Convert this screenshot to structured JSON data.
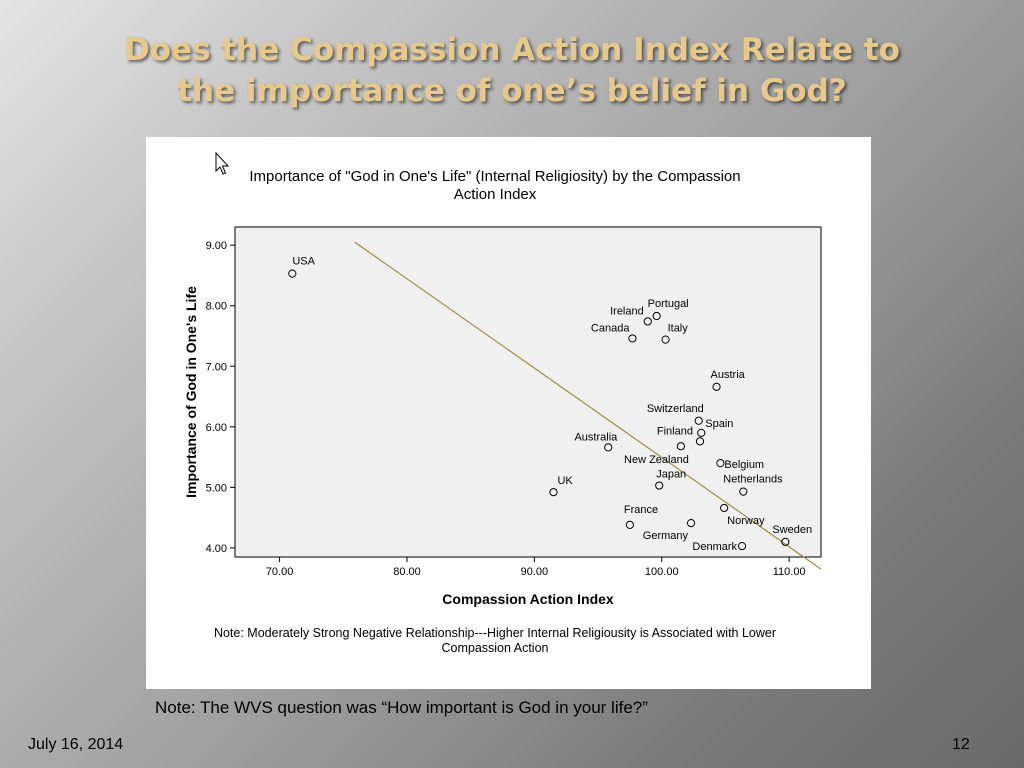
{
  "slide": {
    "title_line1": "Does  the Compassion Action Index Relate to",
    "title_line2": "the importance of one’s belief in God?",
    "footnote": "Note: The WVS question was “How important is God in your life?”",
    "date": "July 16, 2014",
    "page_number": "12"
  },
  "chart_data": {
    "type": "scatter",
    "title_line1": "Importance of \"God in One's Life\" (Internal Religiosity) by the Compassion",
    "title_line2": "Action Index",
    "xlabel": "Compassion Action Index",
    "ylabel": "Importance of God in One's Life",
    "xlim": [
      66.5,
      112.5
    ],
    "ylim": [
      3.85,
      9.3
    ],
    "x_ticks": [
      70,
      80,
      90,
      100,
      110
    ],
    "x_tick_labels": [
      "70.00",
      "80.00",
      "90.00",
      "100.00",
      "110.00"
    ],
    "y_ticks": [
      4,
      5,
      6,
      7,
      8,
      9
    ],
    "y_tick_labels": [
      "4.00",
      "5.00",
      "6.00",
      "7.00",
      "8.00",
      "9.00"
    ],
    "grid": false,
    "point_color": "#000000",
    "fit_line_color": "#a08a4a",
    "plot_background": "#f0f0f0",
    "fit_line": {
      "x": [
        75.9,
        112.5
      ],
      "y": [
        9.05,
        3.65
      ]
    },
    "points": [
      {
        "label": "USA",
        "x": 71.0,
        "y": 8.53
      },
      {
        "label": "Portugal",
        "x": 99.6,
        "y": 7.83
      },
      {
        "label": "Ireland",
        "x": 98.9,
        "y": 7.74
      },
      {
        "label": "Canada",
        "x": 97.7,
        "y": 7.46
      },
      {
        "label": "Italy",
        "x": 100.3,
        "y": 7.44
      },
      {
        "label": "Austria",
        "x": 104.3,
        "y": 6.66
      },
      {
        "label": "Switzerland",
        "x": 102.9,
        "y": 6.1
      },
      {
        "label": "Spain",
        "x": 103.1,
        "y": 5.9
      },
      {
        "label": "Finland",
        "x": 103.0,
        "y": 5.76
      },
      {
        "label": "Australia",
        "x": 95.8,
        "y": 5.66
      },
      {
        "label": "New Zealand",
        "x": 101.5,
        "y": 5.68
      },
      {
        "label": "Belgium",
        "x": 104.6,
        "y": 5.4
      },
      {
        "label": "Japan",
        "x": 99.8,
        "y": 5.03
      },
      {
        "label": "Netherlands",
        "x": 106.4,
        "y": 4.93
      },
      {
        "label": "UK",
        "x": 91.5,
        "y": 4.92
      },
      {
        "label": "Norway",
        "x": 104.9,
        "y": 4.66
      },
      {
        "label": "France",
        "x": 97.5,
        "y": 4.38
      },
      {
        "label": "Germany",
        "x": 102.3,
        "y": 4.41
      },
      {
        "label": "Sweden",
        "x": 109.7,
        "y": 4.1
      },
      {
        "label": "Denmark",
        "x": 106.3,
        "y": 4.03
      }
    ],
    "note_line1": "Note: Moderately Strong Negative Relationship---Higher Internal Religiousity is Associated with Lower",
    "note_line2": "Compassion Action"
  }
}
